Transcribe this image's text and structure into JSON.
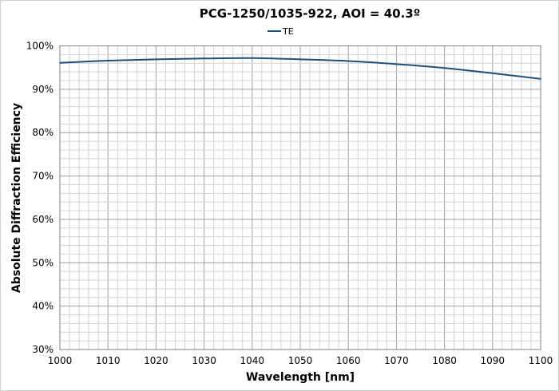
{
  "chart_data": {
    "type": "line",
    "title": "PCG-1250/1035-922, AOI = 40.3º",
    "xlabel": "Wavelength [nm]",
    "ylabel": "Absolute Diffraction Efficiency",
    "xlim": [
      1000,
      1100
    ],
    "ylim": [
      30,
      100
    ],
    "xticks": [
      1000,
      1010,
      1020,
      1030,
      1040,
      1050,
      1060,
      1070,
      1080,
      1090,
      1100
    ],
    "yticks": [
      30,
      40,
      50,
      60,
      70,
      80,
      90,
      100
    ],
    "ytick_labels": [
      "30%",
      "40%",
      "50%",
      "60%",
      "70%",
      "80%",
      "90%",
      "100%"
    ],
    "grid": true,
    "legend_position": "top-center",
    "series": [
      {
        "name": "TE",
        "color": "#1f4e79",
        "x": [
          1000,
          1010,
          1020,
          1030,
          1040,
          1050,
          1060,
          1070,
          1080,
          1090,
          1100
        ],
        "values": [
          96.1,
          96.6,
          96.9,
          97.1,
          97.2,
          96.9,
          96.5,
          95.8,
          94.9,
          93.7,
          92.4
        ]
      }
    ]
  }
}
